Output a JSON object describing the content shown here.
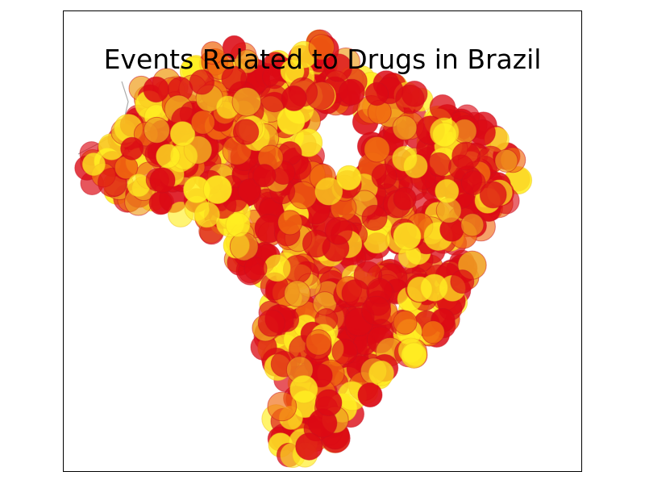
{
  "title": "Events Related to Drugs in Brazil",
  "colors": {
    "red": "#dc0a14",
    "orange": "#f06a10",
    "amber": "#f0a020",
    "yellow": "#ffee22",
    "border": "#aaaaaa",
    "water": "#3a5fa8"
  },
  "legend": null
}
